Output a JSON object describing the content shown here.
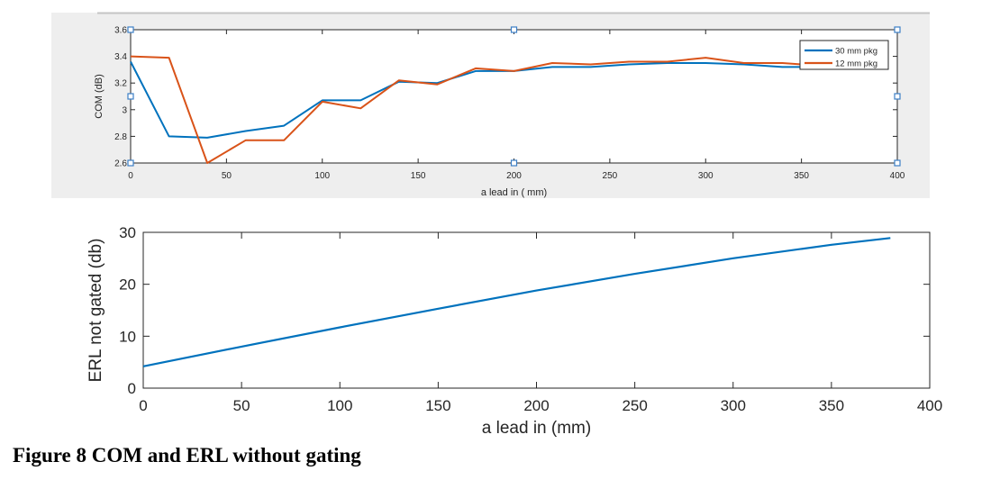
{
  "caption": "Figure 8 COM and ERL without gating",
  "chart_data": [
    {
      "type": "line",
      "xlabel": "a lead in ( mm)",
      "ylabel": "COM (dB)",
      "xlim": [
        0,
        400
      ],
      "ylim": [
        2.6,
        3.6
      ],
      "xticks": [
        0,
        50,
        100,
        150,
        200,
        250,
        300,
        350,
        400
      ],
      "yticks": [
        2.6,
        2.8,
        3,
        3.2,
        3.4,
        3.6
      ],
      "ytick_labels": [
        "2.6",
        "2.8",
        "3",
        "3.2",
        "3.4",
        "3.6"
      ],
      "grid": false,
      "legend_position": "top-right",
      "series": [
        {
          "name": "30 mm pkg",
          "color": "#0072BD",
          "x": [
            0,
            20,
            40,
            60,
            80,
            100,
            120,
            140,
            160,
            180,
            200,
            220,
            240,
            260,
            280,
            300,
            320,
            340,
            350
          ],
          "y": [
            3.36,
            2.8,
            2.79,
            2.84,
            2.88,
            3.07,
            3.07,
            3.21,
            3.2,
            3.29,
            3.29,
            3.32,
            3.32,
            3.34,
            3.35,
            3.35,
            3.34,
            3.32,
            3.32
          ]
        },
        {
          "name": "12 mm pkg",
          "color": "#D95319",
          "x": [
            0,
            20,
            40,
            60,
            80,
            100,
            120,
            140,
            160,
            180,
            200,
            220,
            240,
            260,
            280,
            300,
            320,
            340,
            350
          ],
          "y": [
            3.4,
            3.39,
            2.6,
            2.77,
            2.77,
            3.06,
            3.01,
            3.22,
            3.19,
            3.31,
            3.29,
            3.35,
            3.34,
            3.36,
            3.36,
            3.39,
            3.35,
            3.35,
            3.34
          ]
        }
      ]
    },
    {
      "type": "line",
      "xlabel": "a lead in (mm)",
      "ylabel": "ERL not gated (db)",
      "xlim": [
        0,
        400
      ],
      "ylim": [
        0,
        30
      ],
      "xticks": [
        0,
        50,
        100,
        150,
        200,
        250,
        300,
        350,
        400
      ],
      "yticks": [
        0,
        10,
        20,
        30
      ],
      "ytick_labels": [
        "0",
        "10",
        "20",
        "30"
      ],
      "grid": false,
      "series": [
        {
          "name": "ERL not gated",
          "color": "#0072BD",
          "x": [
            0,
            50,
            100,
            150,
            200,
            250,
            300,
            350,
            380
          ],
          "y": [
            4.2,
            8.0,
            11.7,
            15.3,
            18.8,
            22.0,
            25.0,
            27.6,
            28.9
          ]
        }
      ]
    }
  ]
}
